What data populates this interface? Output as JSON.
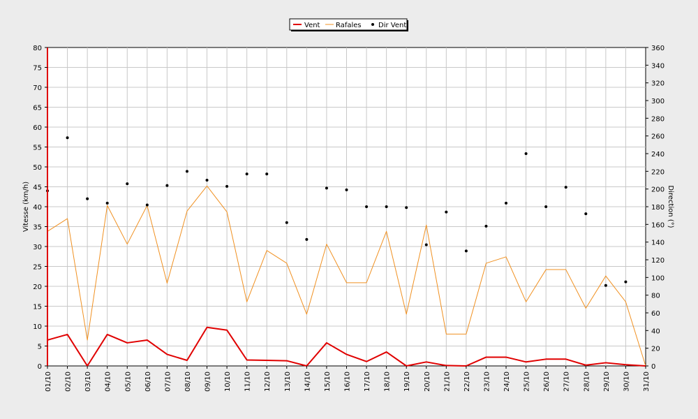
{
  "chart_data": {
    "type": "line",
    "x": [
      "01/10",
      "02/10",
      "03/10",
      "04/10",
      "05/10",
      "06/10",
      "07/10",
      "08/10",
      "09/10",
      "10/10",
      "11/10",
      "12/10",
      "13/10",
      "14/10",
      "15/10",
      "16/10",
      "17/10",
      "18/10",
      "19/10",
      "20/10",
      "21/10",
      "22/10",
      "23/10",
      "24/10",
      "25/10",
      "26/10",
      "27/10",
      "28/10",
      "29/10",
      "30/10",
      "31/10"
    ],
    "ylabel": "Vitesse (km/h)",
    "ylim": [
      0,
      80
    ],
    "yticks": [
      0,
      5,
      10,
      15,
      20,
      25,
      30,
      35,
      40,
      45,
      50,
      55,
      60,
      65,
      70,
      75,
      80
    ],
    "y2label": "Direction (°)",
    "y2lim": [
      0,
      360
    ],
    "y2ticks": [
      0,
      20,
      40,
      60,
      80,
      100,
      120,
      140,
      160,
      180,
      200,
      220,
      240,
      260,
      280,
      300,
      320,
      340,
      360
    ],
    "grid": true,
    "legend_position": "top-center",
    "series": [
      {
        "name": "Vent",
        "axis": "left",
        "style": "line",
        "color": "#e00000",
        "values": [
          6.5,
          7.9,
          0.0,
          7.9,
          5.8,
          6.5,
          2.9,
          1.4,
          9.7,
          9.0,
          1.5,
          1.4,
          1.3,
          0.0,
          5.8,
          2.9,
          1.1,
          3.5,
          0.0,
          1.0,
          0.1,
          0.0,
          2.2,
          2.2,
          1.0,
          1.7,
          1.7,
          0.2,
          0.8,
          0.3,
          0.0
        ]
      },
      {
        "name": "Rafales",
        "axis": "left",
        "style": "line",
        "color": "#f09020",
        "values": [
          33.8,
          37.0,
          6.5,
          40.3,
          30.6,
          40.3,
          20.8,
          38.9,
          45.2,
          38.7,
          16.1,
          29.0,
          25.8,
          13.0,
          30.6,
          20.9,
          20.9,
          33.8,
          13.0,
          35.4,
          8.0,
          8.0,
          25.8,
          27.4,
          16.1,
          24.2,
          24.2,
          14.5,
          22.6,
          16.1,
          0.0
        ]
      },
      {
        "name": "Dir Vent",
        "axis": "right",
        "style": "points",
        "color": "#000000",
        "values": [
          198,
          258,
          189,
          184,
          206,
          182,
          204,
          220,
          210,
          203,
          217,
          217,
          162,
          143,
          201,
          199,
          180,
          180,
          179,
          137,
          174,
          130,
          158,
          184,
          240,
          180,
          202,
          172,
          91,
          95,
          null
        ]
      }
    ]
  }
}
